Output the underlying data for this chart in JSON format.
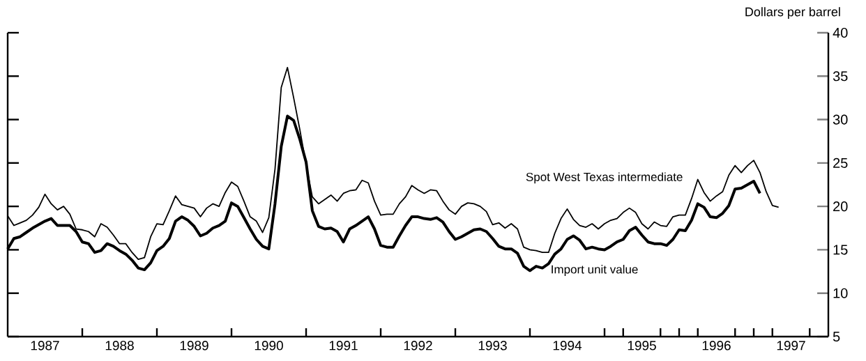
{
  "chart_data": {
    "type": "line",
    "ylabel": "Dollars per barrel",
    "x": [
      "1987-01",
      "1987-02",
      "1987-03",
      "1987-04",
      "1987-05",
      "1987-06",
      "1987-07",
      "1987-08",
      "1987-09",
      "1987-10",
      "1987-11",
      "1987-12",
      "1988-01",
      "1988-02",
      "1988-03",
      "1988-04",
      "1988-05",
      "1988-06",
      "1988-07",
      "1988-08",
      "1988-09",
      "1988-10",
      "1988-11",
      "1988-12",
      "1989-01",
      "1989-02",
      "1989-03",
      "1989-04",
      "1989-05",
      "1989-06",
      "1989-07",
      "1989-08",
      "1989-09",
      "1989-10",
      "1989-11",
      "1989-12",
      "1990-01",
      "1990-02",
      "1990-03",
      "1990-04",
      "1990-05",
      "1990-06",
      "1990-07",
      "1990-08",
      "1990-09",
      "1990-10",
      "1990-11",
      "1990-12",
      "1991-01",
      "1991-02",
      "1991-03",
      "1991-04",
      "1991-05",
      "1991-06",
      "1991-07",
      "1991-08",
      "1991-09",
      "1991-10",
      "1991-11",
      "1991-12",
      "1992-01",
      "1992-02",
      "1992-03",
      "1992-04",
      "1992-05",
      "1992-06",
      "1992-07",
      "1992-08",
      "1992-09",
      "1992-10",
      "1992-11",
      "1992-12",
      "1993-01",
      "1993-02",
      "1993-03",
      "1993-04",
      "1993-05",
      "1993-06",
      "1993-07",
      "1993-08",
      "1993-09",
      "1993-10",
      "1993-11",
      "1993-12",
      "1994-01",
      "1994-02",
      "1994-03",
      "1994-04",
      "1994-05",
      "1994-06",
      "1994-07",
      "1994-08",
      "1994-09",
      "1994-10",
      "1994-11",
      "1994-12",
      "1995-01",
      "1995-02",
      "1995-03",
      "1995-04",
      "1995-05",
      "1995-06",
      "1995-07",
      "1995-08",
      "1995-09",
      "1995-10",
      "1995-11",
      "1995-12",
      "1996-01",
      "1996-02",
      "1996-03",
      "1996-04",
      "1996-05",
      "1996-06",
      "1996-07",
      "1996-08",
      "1996-09",
      "1996-10",
      "1996-11",
      "1996-12",
      "1997-01",
      "1997-02",
      "1997-03",
      "1997-04",
      "1997-05"
    ],
    "series": [
      {
        "name": "Spot West Texas intermediate",
        "color": "#000000",
        "values": [
          18.9,
          17.8,
          18.1,
          18.4,
          19.0,
          19.9,
          21.4,
          20.3,
          19.6,
          20.0,
          19.1,
          17.4,
          17.3,
          17.1,
          16.5,
          18.0,
          17.6,
          16.7,
          15.7,
          15.7,
          14.7,
          13.9,
          14.1,
          16.5,
          18.0,
          17.9,
          19.5,
          21.2,
          20.2,
          20.0,
          19.8,
          18.8,
          19.8,
          20.3,
          20.0,
          21.6,
          22.8,
          22.3,
          20.6,
          18.8,
          18.3,
          17.0,
          18.7,
          24.3,
          33.7,
          36.0,
          32.5,
          28.8,
          24.8,
          21.1,
          20.3,
          20.8,
          21.3,
          20.6,
          21.5,
          21.8,
          21.9,
          23.0,
          22.7,
          20.6,
          19.0,
          19.1,
          19.1,
          20.3,
          21.1,
          22.4,
          21.9,
          21.5,
          21.9,
          21.8,
          20.6,
          19.6,
          19.1,
          20.0,
          20.4,
          20.3,
          20.0,
          19.4,
          17.9,
          18.1,
          17.5,
          18.0,
          17.4,
          15.3,
          15.0,
          14.9,
          14.7,
          14.7,
          16.9,
          18.6,
          19.7,
          18.5,
          17.8,
          17.6,
          18.0,
          17.4,
          18.0,
          18.4,
          18.6,
          19.3,
          19.8,
          19.3,
          18.0,
          17.4,
          18.2,
          17.8,
          17.7,
          18.8,
          19.0,
          19.0,
          20.9,
          23.1,
          21.6,
          20.6,
          21.2,
          21.7,
          23.6,
          24.7,
          23.9,
          24.7,
          25.3,
          23.9,
          21.7,
          20.1,
          19.9
        ]
      },
      {
        "name": "Import unit value",
        "color": "#000000",
        "values": [
          15.1,
          16.3,
          16.5,
          17.0,
          17.5,
          17.9,
          18.3,
          18.6,
          17.8,
          17.8,
          17.8,
          17.1,
          15.9,
          15.7,
          14.7,
          14.9,
          15.7,
          15.4,
          14.9,
          14.5,
          13.8,
          12.9,
          12.7,
          13.5,
          14.9,
          15.4,
          16.3,
          18.3,
          18.8,
          18.4,
          17.7,
          16.6,
          16.9,
          17.5,
          17.8,
          18.3,
          20.4,
          20.0,
          18.7,
          17.4,
          16.2,
          15.4,
          15.1,
          20.3,
          26.9,
          30.4,
          29.9,
          27.7,
          25.1,
          19.5,
          17.7,
          17.4,
          17.5,
          17.1,
          15.9,
          17.4,
          17.8,
          18.3,
          18.8,
          17.4,
          15.5,
          15.3,
          15.3,
          16.6,
          17.8,
          18.8,
          18.8,
          18.6,
          18.5,
          18.7,
          18.2,
          17.1,
          16.2,
          16.5,
          16.9,
          17.3,
          17.4,
          17.1,
          16.3,
          15.4,
          15.1,
          15.1,
          14.6,
          13.1,
          12.6,
          13.1,
          12.9,
          13.4,
          14.5,
          15.1,
          16.2,
          16.6,
          16.1,
          15.1,
          15.3,
          15.1,
          15.0,
          15.4,
          15.9,
          16.2,
          17.2,
          17.6,
          16.7,
          15.9,
          15.7,
          15.7,
          15.5,
          16.2,
          17.3,
          17.2,
          18.4,
          20.3,
          19.9,
          18.8,
          18.7,
          19.2,
          20.1,
          22.0,
          22.1,
          22.5,
          22.9,
          21.5,
          null,
          null,
          null
        ]
      }
    ],
    "xlim": [
      "1987-01",
      "1998-01"
    ],
    "xticks": [
      {
        "value": "1987-07",
        "label": "1987"
      },
      {
        "value": "1988-07",
        "label": "1988"
      },
      {
        "value": "1989-07",
        "label": "1989"
      },
      {
        "value": "1990-07",
        "label": "1990"
      },
      {
        "value": "1991-07",
        "label": "1991"
      },
      {
        "value": "1992-07",
        "label": "1992"
      },
      {
        "value": "1993-07",
        "label": "1993"
      },
      {
        "value": "1994-07",
        "label": "1994"
      },
      {
        "value": "1995-07",
        "label": "1995"
      },
      {
        "value": "1996-07",
        "label": "1996"
      },
      {
        "value": "1997-07",
        "label": "1997"
      },
      {
        "value": "1988-01",
        "label": null
      },
      {
        "value": "1989-01",
        "label": null
      },
      {
        "value": "1990-01",
        "label": null
      },
      {
        "value": "1991-01",
        "label": null
      },
      {
        "value": "1992-01",
        "label": null
      },
      {
        "value": "1993-01",
        "label": null
      },
      {
        "value": "1994-01",
        "label": null
      },
      {
        "value": "1995-01",
        "label": null
      },
      {
        "value": "1995-04",
        "label": null
      },
      {
        "value": "1995-10",
        "label": null
      },
      {
        "value": "1996-01",
        "label": null
      },
      {
        "value": "1996-04",
        "label": null
      },
      {
        "value": "1996-10",
        "label": null
      },
      {
        "value": "1997-01",
        "label": null
      },
      {
        "value": "1997-04",
        "label": null
      },
      {
        "value": "1997-10",
        "label": null
      }
    ],
    "ylim": [
      5,
      40
    ],
    "yticks": [
      5,
      10,
      15,
      20,
      25,
      30,
      35,
      40
    ]
  }
}
